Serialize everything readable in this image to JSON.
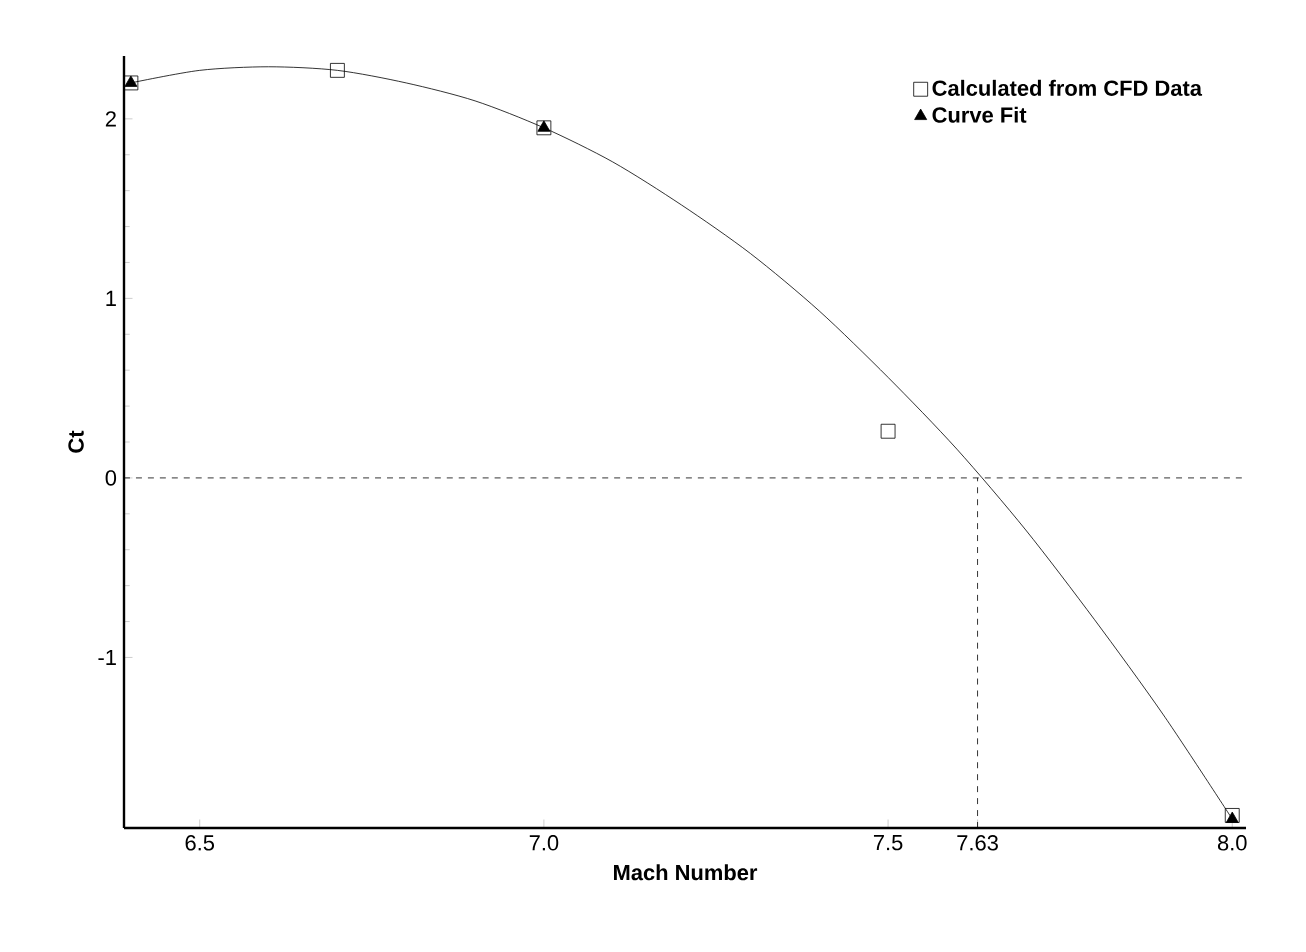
{
  "chart_data": {
    "type": "scatter",
    "xlabel": "Mach Number",
    "ylabel": "Ct",
    "xlim": [
      6.39,
      8.02
    ],
    "ylim": [
      -1.95,
      2.35
    ],
    "xticks": [
      6.5,
      {
        "value": 7,
        "label": "7.0"
      },
      7.5,
      7.63,
      {
        "value": 8,
        "label": "8.0"
      }
    ],
    "yticks": [
      -1,
      0,
      1,
      2
    ],
    "legend": "top right",
    "grid": false,
    "series": [
      {
        "name": "Calculated from CFD Data",
        "marker": "square",
        "color": "#000000",
        "x": [
          6.4,
          6.7,
          7.0,
          7.5,
          8.0
        ],
        "values": [
          2.2,
          2.27,
          1.95,
          0.26,
          -1.88
        ]
      },
      {
        "type": "line",
        "marker": "none",
        "color": "#000000",
        "x": [
          6.4,
          6.5,
          6.6,
          6.7,
          6.8,
          6.9,
          7.0,
          7.1,
          7.2,
          7.3,
          7.4,
          7.5,
          7.6,
          7.7,
          7.8,
          7.9,
          8.0
        ],
        "values": [
          2.2,
          2.27,
          2.29,
          2.27,
          2.2,
          2.1,
          1.95,
          1.76,
          1.52,
          1.25,
          0.93,
          0.56,
          0.16,
          -0.29,
          -0.79,
          -1.32,
          -1.9
        ]
      },
      {
        "name": "Curve Fit",
        "marker": "triangle",
        "color": "#000000",
        "x": [
          6.4,
          7.0,
          8.0
        ],
        "values": [
          2.2,
          1.95,
          -1.9
        ]
      }
    ],
    "ref_lines": [
      {
        "axis": "y",
        "value": 0,
        "line_style": "dashed"
      },
      {
        "axis": "x",
        "value": 7.63,
        "line_style": "dashed"
      }
    ]
  }
}
